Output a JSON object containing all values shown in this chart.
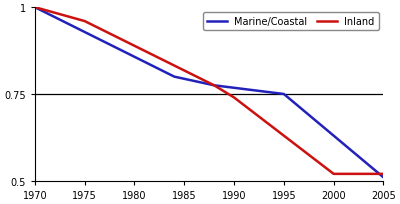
{
  "blue_x": [
    1970,
    1984,
    1988,
    1995,
    2005
  ],
  "blue_y": [
    1.0,
    0.8,
    0.775,
    0.75,
    0.51
  ],
  "red_x": [
    1970,
    1975,
    1988,
    1990,
    2000,
    2005
  ],
  "red_y": [
    1.0,
    0.96,
    0.775,
    0.74,
    0.52,
    0.52
  ],
  "hline_y": 0.75,
  "xlim": [
    1970,
    2005
  ],
  "ylim": [
    0.5,
    1.0
  ],
  "yticks": [
    0.5,
    0.75,
    1
  ],
  "xticks": [
    1970,
    1975,
    1980,
    1985,
    1990,
    1995,
    2000,
    2005
  ],
  "blue_color": "#2222bb",
  "red_color": "#cc1111",
  "hline_color": "#000000",
  "legend_labels": [
    "Marine/Coastal",
    "Inland"
  ],
  "background_color": "#ffffff",
  "line_width": 1.8,
  "figsize": [
    4.0,
    2.05
  ],
  "dpi": 100
}
